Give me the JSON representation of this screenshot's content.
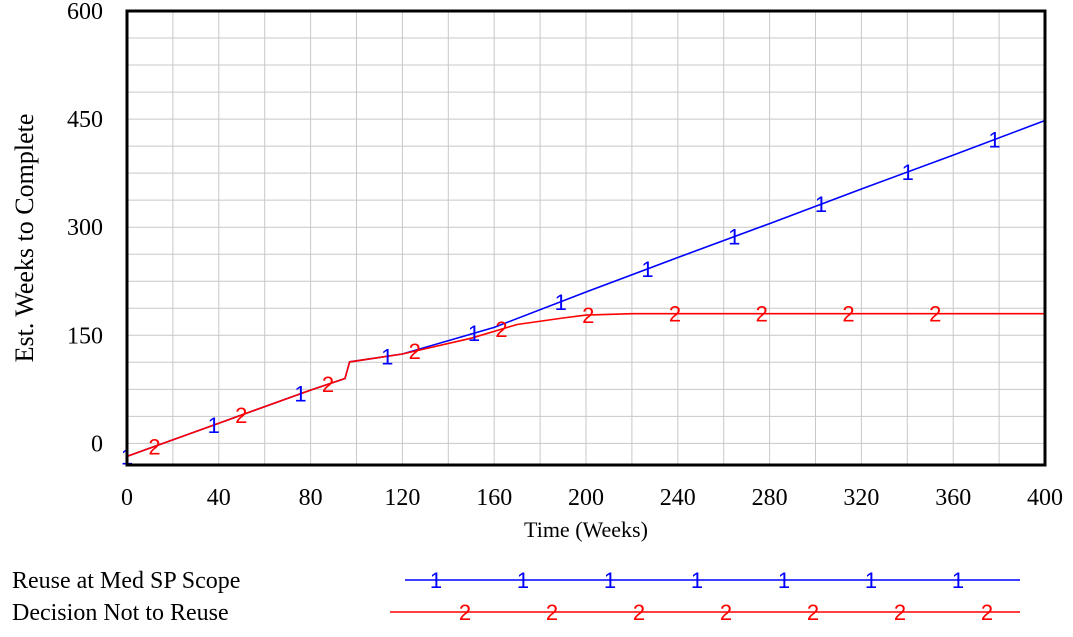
{
  "chart_data": {
    "type": "line",
    "title": "",
    "xlabel": "Time (Weeks)",
    "ylabel": "Est. Weeks to Complete",
    "xlim": [
      0,
      400
    ],
    "ylim": [
      -30,
      600
    ],
    "x_ticks": [
      0,
      40,
      80,
      120,
      160,
      200,
      240,
      280,
      320,
      360,
      400
    ],
    "y_ticks": [
      0,
      150,
      300,
      450,
      600
    ],
    "grid": true,
    "legend_position": "bottom",
    "series": [
      {
        "name": "Reuse at Med SP Scope",
        "marker": "1",
        "color": "#0000ff",
        "x": [
          0,
          40,
          80,
          95,
          97,
          120,
          160,
          200,
          240,
          280,
          320,
          360,
          400
        ],
        "y": [
          -18,
          28,
          74,
          90,
          113,
          124,
          161,
          210,
          258,
          305,
          353,
          400,
          448
        ]
      },
      {
        "name": "Decision Not to Reuse",
        "marker": "2",
        "color": "#ff0000",
        "x": [
          0,
          40,
          80,
          95,
          97,
          120,
          150,
          170,
          190,
          200,
          220,
          240,
          280,
          320,
          360,
          400
        ],
        "y": [
          -18,
          28,
          74,
          90,
          113,
          124,
          146,
          165,
          174,
          178,
          180,
          180,
          180,
          180,
          180,
          180
        ]
      }
    ]
  }
}
